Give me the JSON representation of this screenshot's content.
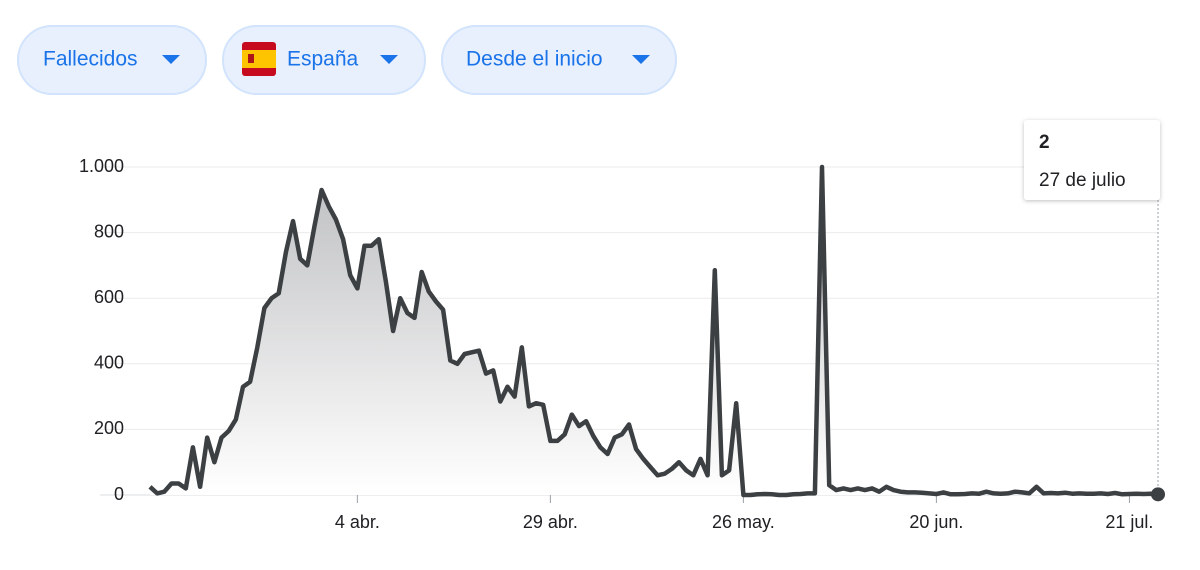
{
  "filters": [
    "Fallecidos",
    "España",
    "Desde el inicio"
  ],
  "chart_data": {
    "type": "area",
    "color": "#3c4043",
    "categories": [
      null,
      null,
      null,
      null,
      null,
      null,
      null,
      null,
      null,
      null,
      null,
      null,
      null,
      null,
      null,
      null,
      null,
      null,
      null,
      null,
      null,
      null,
      null,
      null,
      null,
      null,
      null,
      null,
      null,
      "4 abr.",
      null,
      null,
      null,
      null,
      null,
      null,
      null,
      null,
      null,
      null,
      null,
      null,
      null,
      null,
      null,
      null,
      null,
      null,
      null,
      null,
      null,
      null,
      null,
      null,
      null,
      null,
      "29 abr.",
      null,
      null,
      null,
      null,
      null,
      null,
      null,
      null,
      null,
      null,
      null,
      null,
      null,
      null,
      null,
      null,
      null,
      null,
      null,
      null,
      null,
      null,
      null,
      null,
      null,
      null,
      "26 may.",
      null,
      null,
      null,
      null,
      null,
      null,
      null,
      null,
      null,
      null,
      null,
      null,
      null,
      null,
      null,
      null,
      null,
      null,
      null,
      null,
      null,
      null,
      null,
      null,
      null,
      null,
      "20 jun.",
      null,
      null,
      null,
      null,
      null,
      null,
      null,
      null,
      null,
      null,
      null,
      null,
      null,
      null,
      null,
      null,
      null,
      null,
      null,
      null,
      null,
      null,
      null,
      null,
      null,
      null,
      "21 jul.",
      null,
      null,
      null,
      null
    ],
    "values": [
      25,
      5,
      10,
      35,
      35,
      20,
      145,
      25,
      175,
      100,
      175,
      195,
      230,
      330,
      345,
      450,
      570,
      600,
      615,
      740,
      835,
      720,
      700,
      820,
      930,
      880,
      840,
      780,
      670,
      630,
      760,
      760,
      780,
      650,
      500,
      600,
      555,
      540,
      680,
      620,
      590,
      565,
      410,
      400,
      430,
      435,
      440,
      370,
      380,
      285,
      330,
      300,
      450,
      270,
      280,
      275,
      165,
      165,
      185,
      245,
      210,
      225,
      180,
      145,
      125,
      175,
      185,
      215,
      140,
      110,
      85,
      60,
      65,
      80,
      100,
      75,
      60,
      110,
      60,
      685,
      60,
      75,
      280,
      0,
      0,
      2,
      3,
      2,
      0,
      0,
      2,
      3,
      5,
      5,
      1000,
      30,
      15,
      20,
      15,
      20,
      15,
      20,
      10,
      25,
      15,
      10,
      8,
      8,
      7,
      5,
      3,
      8,
      2,
      2,
      3,
      5,
      4,
      10,
      5,
      4,
      5,
      10,
      8,
      5,
      25,
      5,
      6,
      5,
      7,
      4,
      5,
      4,
      4,
      5,
      3,
      6,
      2,
      3,
      4,
      3,
      4,
      2
    ],
    "ylim": [
      0,
      1000
    ],
    "yticks": [
      0,
      200,
      400,
      600,
      800,
      {
        "value": 1000,
        "label": "1.000"
      }
    ],
    "grid": true,
    "tooltip": {
      "date": "27 de julio"
    }
  }
}
